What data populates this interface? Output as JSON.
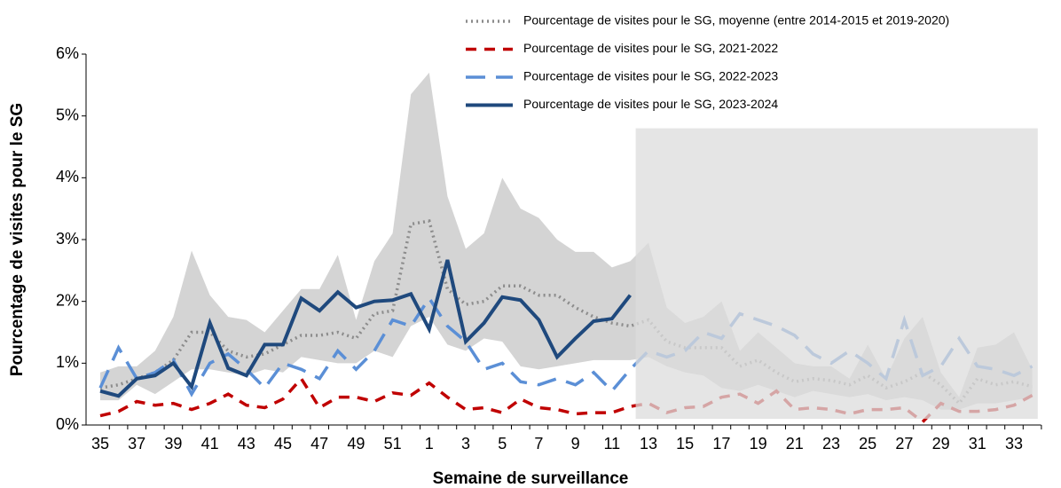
{
  "chart_data": {
    "type": "line",
    "x_label": "Semaine de surveillance",
    "y_label": "Pourcentage de visites pour le SG",
    "categories": [
      "35",
      null,
      "37",
      null,
      "39",
      null,
      "41",
      null,
      "43",
      null,
      "45",
      null,
      "47",
      null,
      "49",
      null,
      "51",
      null,
      "1",
      null,
      "3",
      null,
      "5",
      null,
      "7",
      null,
      "9",
      null,
      "11",
      null,
      "13",
      null,
      "15",
      null,
      "17",
      null,
      "19",
      null,
      "21",
      null,
      "23",
      null,
      "25",
      null,
      "27",
      null,
      "29",
      null,
      "31",
      null,
      "33",
      null
    ],
    "ylim": [
      0,
      6
    ],
    "yticks": [
      {
        "value": 0,
        "label": "0%"
      },
      {
        "value": 1,
        "label": "1%"
      },
      {
        "value": 2,
        "label": "2%"
      },
      {
        "value": 3,
        "label": "3%"
      },
      {
        "value": 4,
        "label": "4%"
      },
      {
        "value": 5,
        "label": "5%"
      },
      {
        "value": 6,
        "label": "6%"
      }
    ],
    "range": {
      "color": "#d4d4d4",
      "max": [
        0.85,
        0.95,
        0.95,
        1.2,
        1.75,
        2.82,
        2.1,
        1.75,
        1.7,
        1.5,
        1.85,
        2.2,
        2.2,
        2.75,
        1.7,
        2.65,
        3.1,
        5.35,
        5.7,
        3.7,
        2.85,
        3.1,
        4.0,
        3.5,
        3.35,
        3.0,
        2.8,
        2.8,
        2.55,
        2.65,
        2.95,
        1.9,
        1.65,
        1.75,
        2.0,
        1.2,
        1.5,
        1.25,
        1.0,
        0.95,
        0.95,
        0.75,
        1.3,
        0.75,
        1.4,
        1.75,
        0.85,
        0.45,
        1.25,
        1.3,
        1.5,
        0.9
      ],
      "min": [
        0.4,
        0.4,
        0.65,
        0.5,
        0.7,
        0.9,
        0.9,
        0.85,
        0.8,
        0.9,
        0.85,
        1.1,
        1.05,
        1.0,
        1.0,
        1.2,
        1.1,
        1.6,
        1.75,
        1.3,
        1.2,
        1.4,
        1.35,
        0.95,
        0.9,
        0.95,
        1.0,
        1.05,
        1.05,
        1.05,
        1.1,
        0.95,
        0.85,
        0.8,
        0.6,
        0.55,
        0.65,
        0.55,
        0.45,
        0.55,
        0.5,
        0.45,
        0.5,
        0.4,
        0.45,
        0.4,
        0.25,
        0.25,
        0.35,
        0.35,
        0.4,
        0.45
      ]
    },
    "shade": {
      "from": 29.3,
      "to": 51.3,
      "y": [
        0.1,
        4.8
      ],
      "color": "#dcdcdc"
    },
    "series": [
      {
        "name": "Pourcentage de visites pour le SG, moyenne (entre 2014-2015 et 2019-2020)",
        "color": "#8c8c8c",
        "dash": "2 4",
        "values": [
          0.6,
          0.65,
          0.75,
          0.85,
          1.05,
          1.5,
          1.5,
          1.2,
          1.1,
          1.15,
          1.3,
          1.45,
          1.45,
          1.5,
          1.4,
          1.8,
          1.85,
          3.25,
          3.3,
          2.2,
          1.95,
          2.0,
          2.25,
          2.25,
          2.1,
          2.1,
          1.9,
          1.75,
          1.65,
          1.6,
          1.7,
          1.35,
          1.25,
          1.25,
          1.25,
          0.95,
          1.05,
          0.85,
          0.7,
          0.75,
          0.72,
          0.65,
          0.8,
          0.6,
          0.7,
          0.85,
          0.65,
          0.35,
          0.75,
          0.65,
          0.7,
          0.62
        ]
      },
      {
        "name": "Pourcentage de visites pour le SG, 2021-2022",
        "color": "#c00000",
        "dash": "12 9",
        "values": [
          0.15,
          0.22,
          0.38,
          0.32,
          0.35,
          0.25,
          0.35,
          0.5,
          0.32,
          0.28,
          0.42,
          0.75,
          0.28,
          0.45,
          0.45,
          0.38,
          0.52,
          0.48,
          0.68,
          0.45,
          0.25,
          0.28,
          0.2,
          0.42,
          0.28,
          0.25,
          0.18,
          0.2,
          0.2,
          0.3,
          0.35,
          0.2,
          0.28,
          0.3,
          0.45,
          0.5,
          0.35,
          0.55,
          0.25,
          0.28,
          0.25,
          0.18,
          0.25,
          0.25,
          0.28,
          0.05,
          0.35,
          0.22,
          0.22,
          0.25,
          0.32,
          0.48
        ]
      },
      {
        "name": "Pourcentage de visites pour le SG, 2022-2023",
        "color": "#5b8fd6",
        "dash": "22 12",
        "values": [
          0.6,
          1.25,
          0.75,
          0.85,
          1.05,
          0.5,
          1.0,
          1.15,
          0.9,
          0.6,
          1.0,
          0.9,
          0.75,
          1.2,
          0.9,
          1.2,
          1.7,
          1.6,
          2.05,
          1.6,
          1.35,
          0.9,
          1.0,
          0.7,
          0.65,
          0.75,
          0.65,
          0.85,
          0.55,
          0.9,
          1.2,
          1.1,
          1.2,
          1.5,
          1.4,
          1.8,
          1.7,
          1.6,
          1.45,
          1.15,
          1.0,
          1.2,
          1.0,
          0.75,
          1.7,
          0.8,
          0.95,
          1.4,
          0.95,
          0.9,
          0.8,
          0.95
        ]
      },
      {
        "name": "Pourcentage de visites pour le SG, 2023-2024",
        "color": "#1f497d",
        "dash": "",
        "values": [
          0.55,
          0.47,
          0.75,
          0.8,
          1.0,
          0.62,
          1.65,
          0.92,
          0.8,
          1.3,
          1.3,
          2.05,
          1.85,
          2.15,
          1.9,
          2.0,
          2.02,
          2.12,
          1.55,
          2.67,
          1.35,
          1.65,
          2.07,
          2.02,
          1.7,
          1.1,
          1.4,
          1.68,
          1.72,
          2.1,
          null,
          null,
          null,
          null,
          null,
          null,
          null,
          null,
          null,
          null,
          null,
          null,
          null,
          null,
          null,
          null,
          null,
          null,
          null,
          null,
          null,
          null
        ]
      }
    ]
  }
}
